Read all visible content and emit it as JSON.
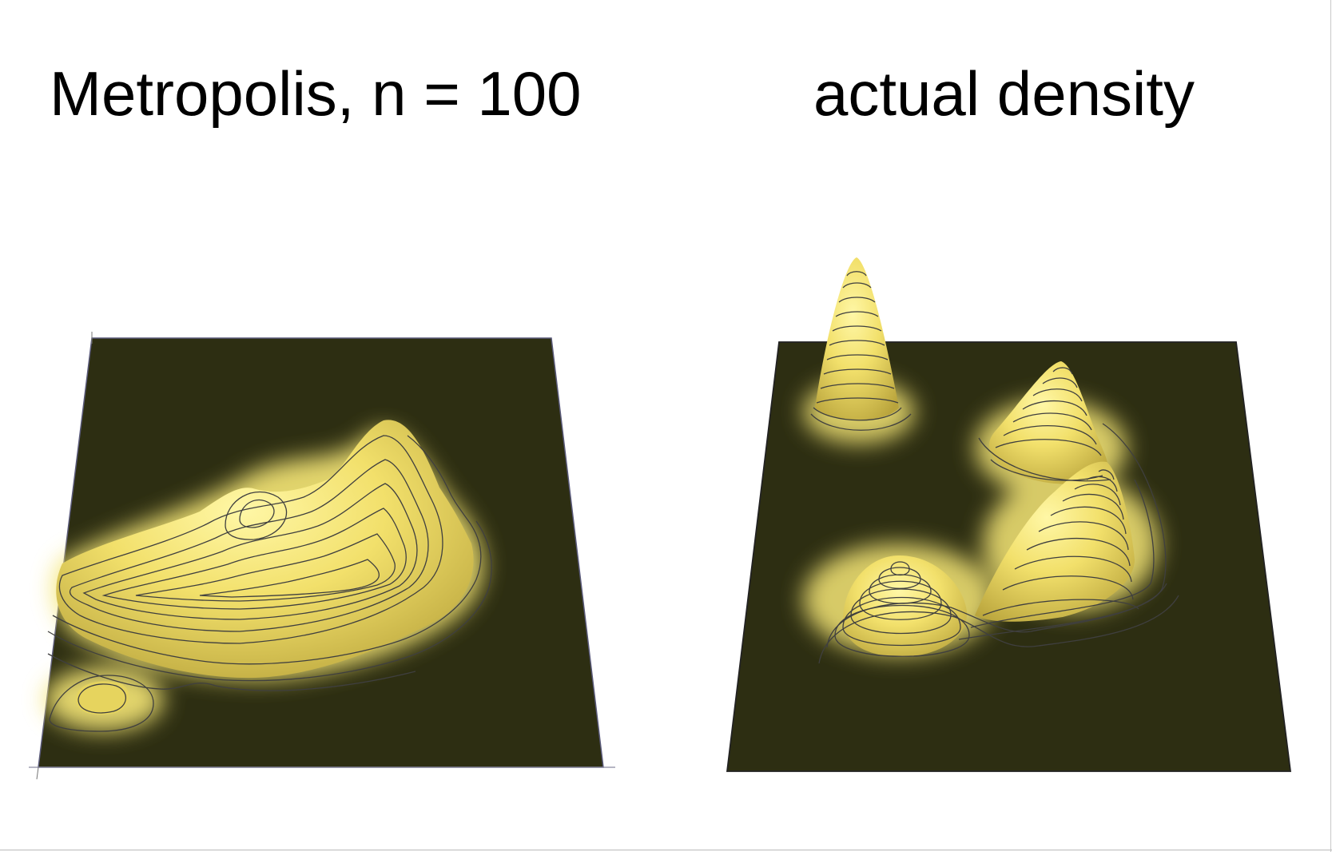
{
  "chart_data": [
    {
      "type": "surface3d",
      "title": "Metropolis, n = 100",
      "surface_color": "#f5e676",
      "floor_color": "#2d2e12",
      "contour_color": "#3f3f3f",
      "peaks": [
        {
          "x": 0.62,
          "y": 0.36,
          "height": 0.9
        },
        {
          "x": 0.38,
          "y": 0.42,
          "height": 0.75
        },
        {
          "x": 0.18,
          "y": 0.6,
          "height": 0.6
        },
        {
          "x": 0.12,
          "y": 0.88,
          "height": 0.2
        }
      ]
    },
    {
      "type": "surface3d",
      "title": "actual density",
      "surface_color": "#f5e676",
      "floor_color": "#2d2e12",
      "contour_color": "#3f3f3f",
      "peaks": [
        {
          "x": 0.17,
          "y": 0.18,
          "height": 1.0
        },
        {
          "x": 0.62,
          "y": 0.32,
          "height": 0.9
        },
        {
          "x": 0.62,
          "y": 0.55,
          "height": 0.85
        },
        {
          "x": 0.32,
          "y": 0.6,
          "height": 0.55
        }
      ]
    }
  ]
}
